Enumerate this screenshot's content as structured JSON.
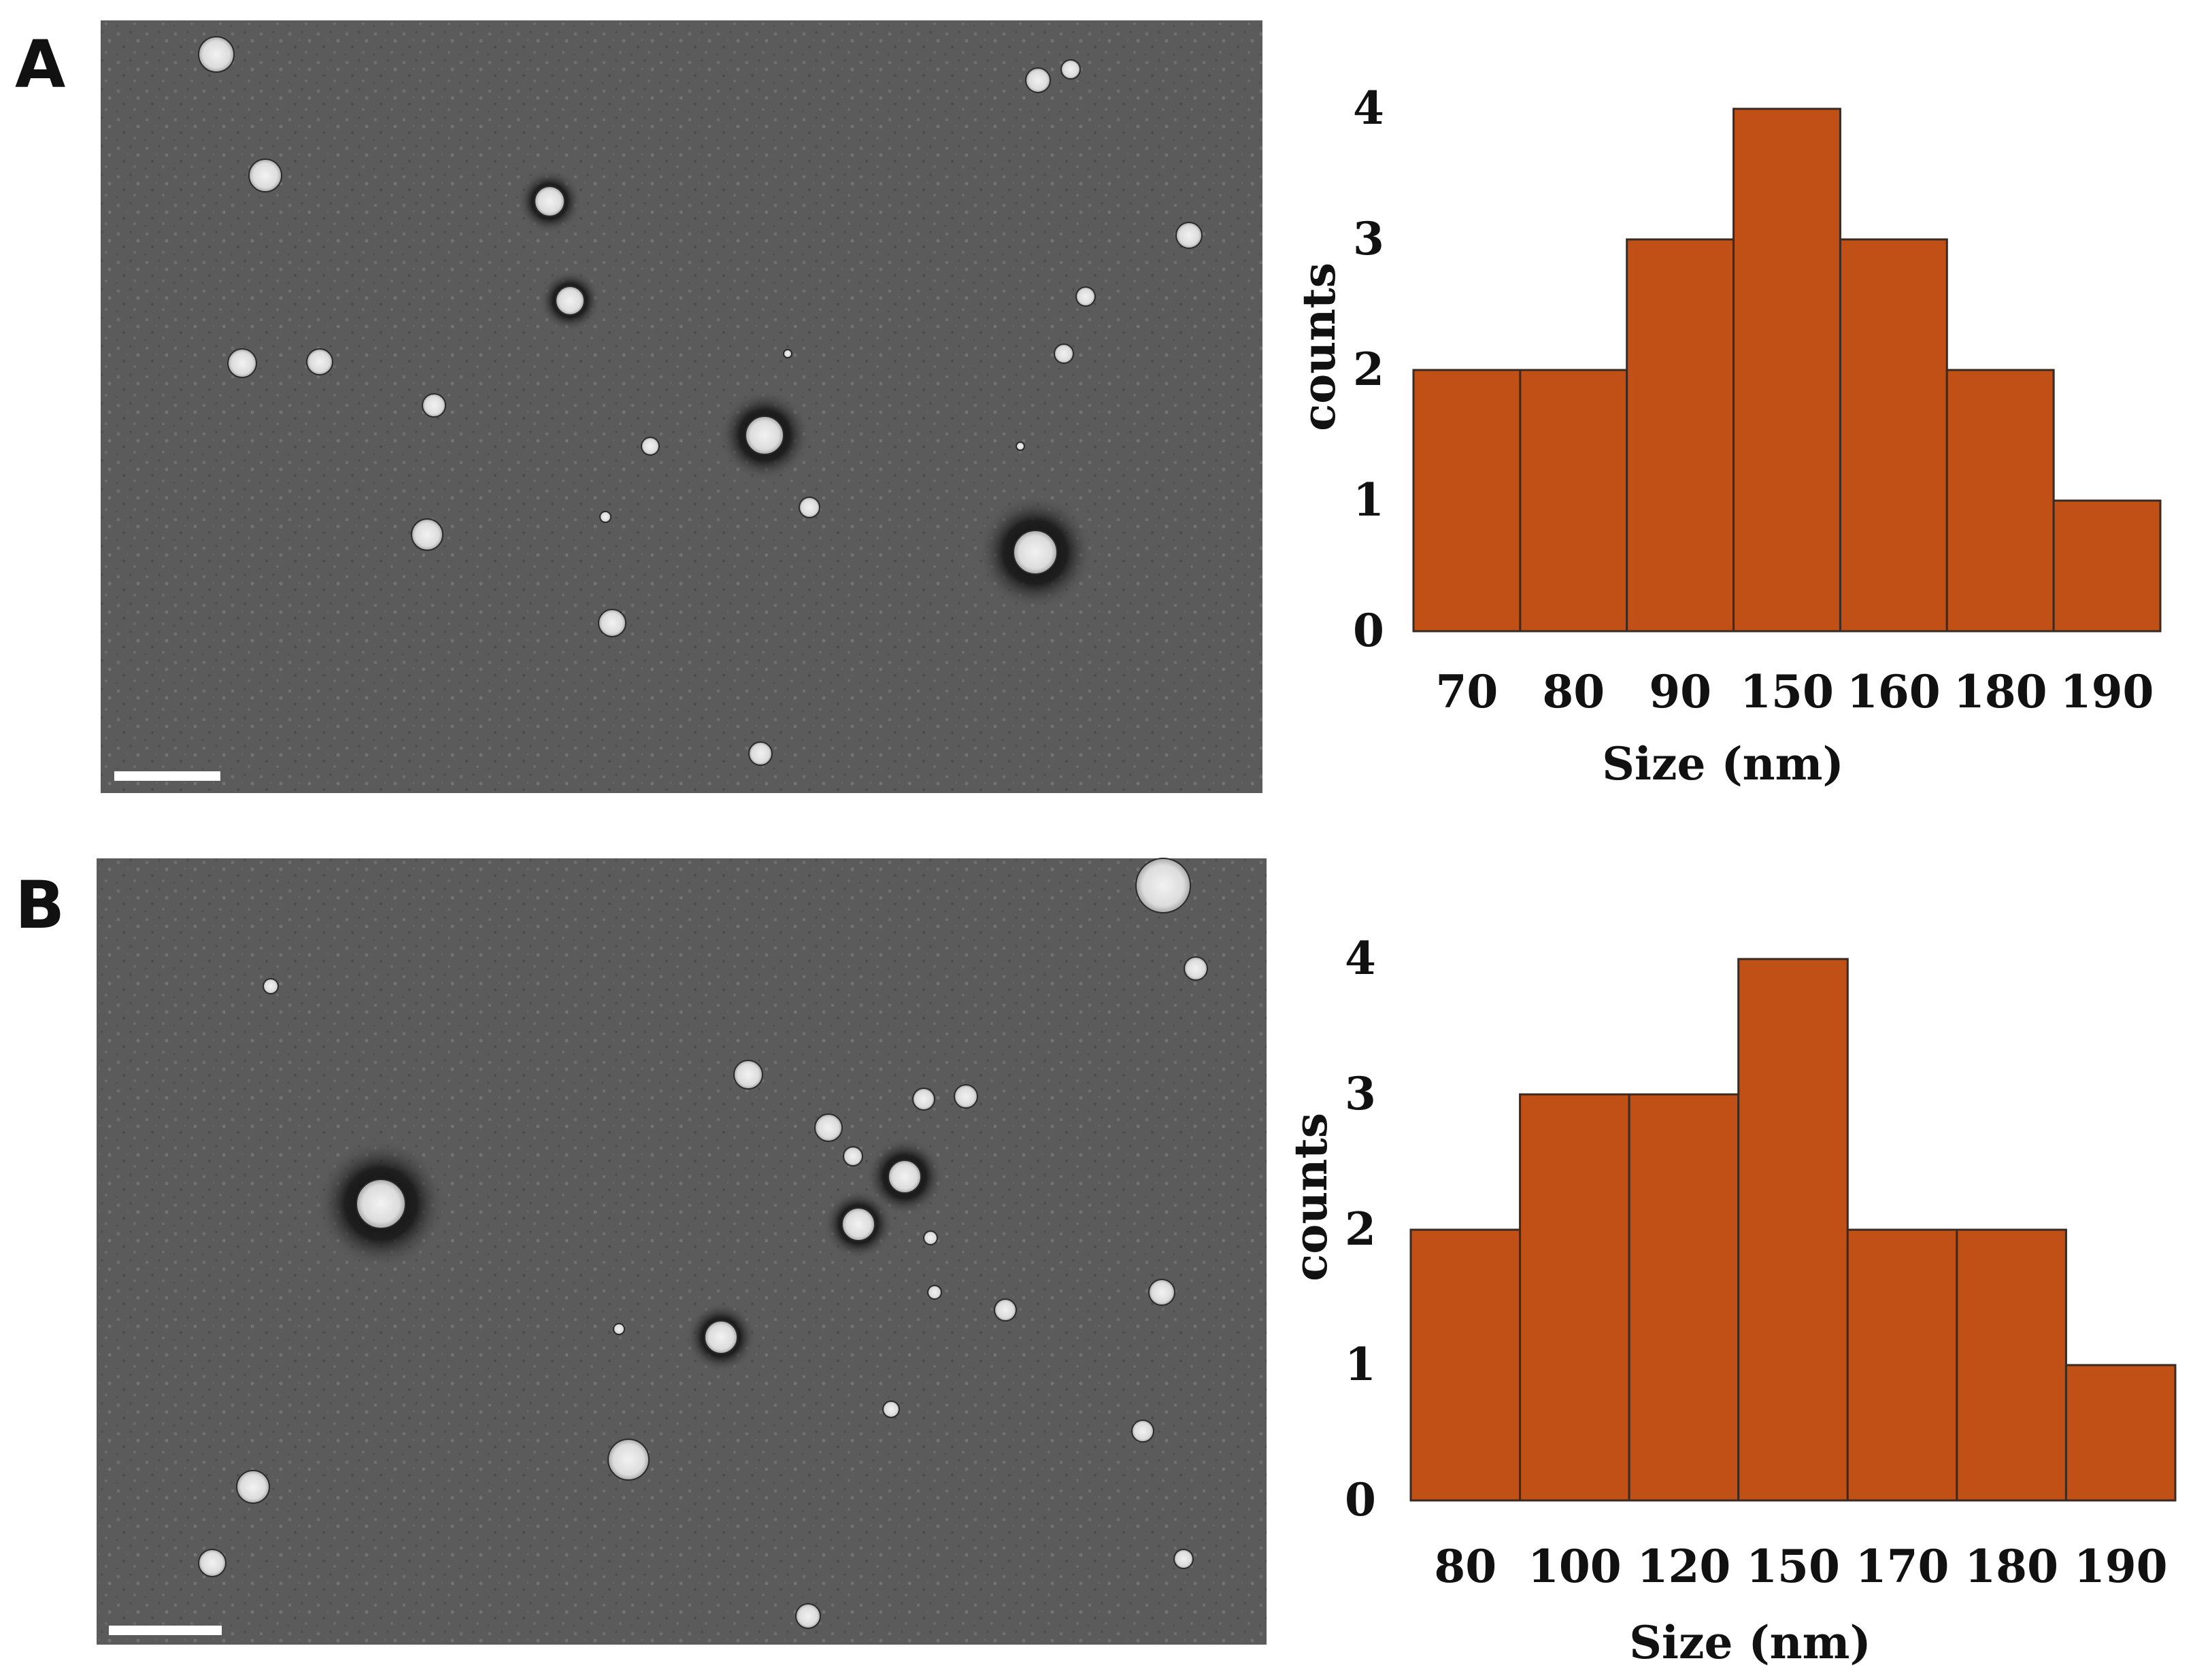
{
  "figure": {
    "panels": [
      {
        "letter": "A"
      },
      {
        "letter": "B"
      }
    ]
  },
  "colors": {
    "bar_fill": "#c05016",
    "bar_stroke": "#3a2a22",
    "micrograph_background": "#5b5b5b",
    "particle": "#e6e6e6",
    "halo": "#101010",
    "scale_bar": "#ffffff"
  },
  "icons": {
    "micrograph_a": "tem-micrograph-icon",
    "micrograph_b": "tem-micrograph-icon"
  },
  "chart_data": [
    {
      "panel": "A",
      "type": "bar",
      "categories": [
        "70",
        "80",
        "90",
        "150",
        "160",
        "180",
        "190"
      ],
      "values": [
        2,
        2,
        3,
        4,
        3,
        2,
        1
      ],
      "xlabel": "Size (nm)",
      "ylabel": "counts",
      "yticks": [
        "0",
        "1",
        "2",
        "3",
        "4"
      ],
      "ylim": [
        0,
        4
      ],
      "grid": false,
      "legend": "none"
    },
    {
      "panel": "B",
      "type": "bar",
      "categories": [
        "80",
        "100",
        "120",
        "150",
        "170",
        "180",
        "190"
      ],
      "values": [
        2,
        3,
        3,
        4,
        2,
        2,
        1
      ],
      "xlabel": "Size (nm)",
      "ylabel": "counts",
      "yticks": [
        "0",
        "1",
        "2",
        "3",
        "4"
      ],
      "ylim": [
        0,
        4
      ],
      "grid": false,
      "legend": "none"
    }
  ]
}
